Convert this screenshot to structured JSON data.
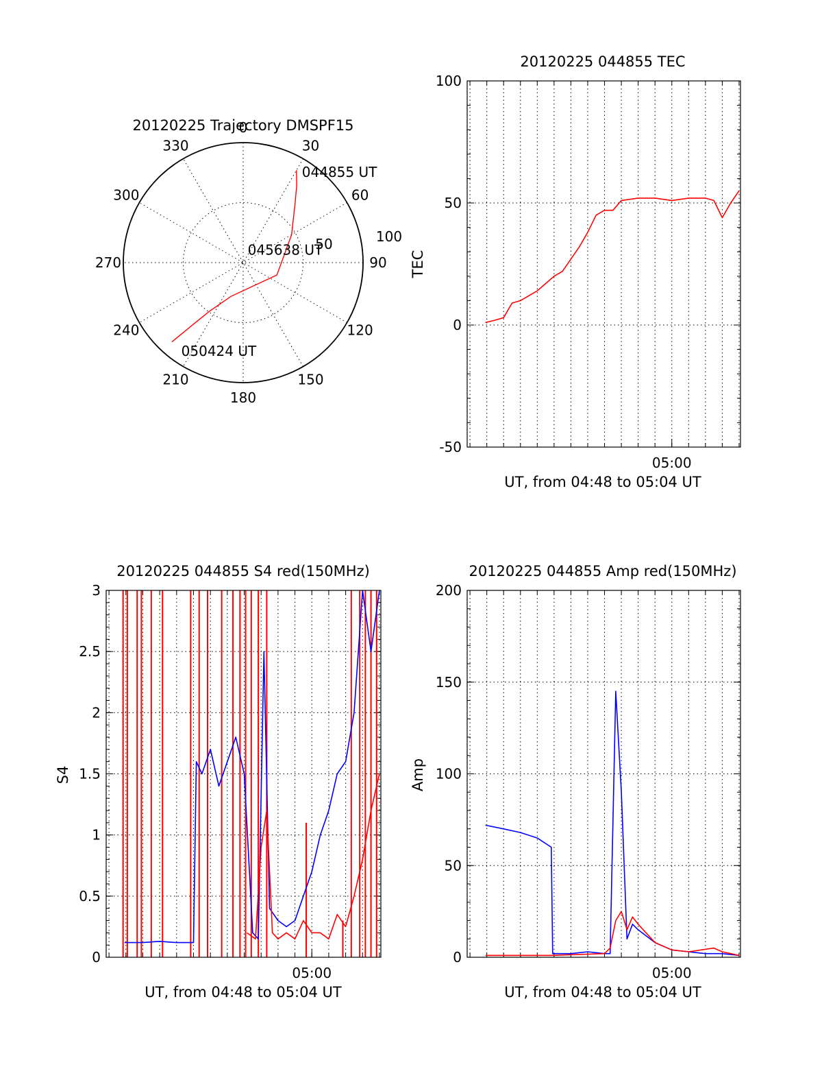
{
  "chart_data": [
    {
      "type": "polar-trajectory",
      "title": "20120225 Trajectory DMSPF15",
      "azimuth_labels": [
        "0",
        "30",
        "60",
        "90",
        "120",
        "150",
        "180",
        "210",
        "240",
        "270",
        "300",
        "330"
      ],
      "radial_labels": [
        "50",
        "100"
      ],
      "grid": true,
      "series": [
        {
          "color": "#ff0000",
          "points": [
            {
              "az": 30,
              "elev": 10
            },
            {
              "az": 35,
              "elev": 20
            },
            {
              "az": 42,
              "elev": 32
            },
            {
              "az": 60,
              "elev": 48
            },
            {
              "az": 110,
              "elev": 63
            },
            {
              "az": 200,
              "elev": 63
            },
            {
              "az": 215,
              "elev": 45
            },
            {
              "az": 220,
              "elev": 25
            },
            {
              "az": 222,
              "elev": 10
            }
          ]
        }
      ],
      "annotations": [
        {
          "text": "044855 UT",
          "az": 33,
          "elev": 9
        },
        {
          "text": "045638 UT",
          "az": 20,
          "elev": 80
        },
        {
          "text": "050424 UT",
          "az": 215,
          "elev": 9
        }
      ]
    },
    {
      "type": "line",
      "title": "20120225 044855 TEC",
      "xlabel": "UT, from 04:48 to 05:04 UT",
      "ylabel": "TEC",
      "xlim": [
        "04:47:50",
        "05:04:05"
      ],
      "ylim": [
        -50,
        100
      ],
      "yticks": [
        -50,
        0,
        50,
        100
      ],
      "xtick_labels": [
        {
          "label": "05:00",
          "t": "05:00"
        }
      ],
      "grid": true,
      "series": [
        {
          "color": "#ff0000",
          "x": [
            "04:48:55",
            "04:49:30",
            "04:50:00",
            "04:50:30",
            "04:51:00",
            "04:51:30",
            "04:52:00",
            "04:52:30",
            "04:53:00",
            "04:53:30",
            "04:54:00",
            "04:54:30",
            "04:55:00",
            "04:55:30",
            "04:56:00",
            "04:56:30",
            "04:57:00",
            "04:58:00",
            "04:59:00",
            "05:00:00",
            "05:01:00",
            "05:02:00",
            "05:02:30",
            "05:03:00",
            "05:03:30",
            "05:04:00"
          ],
          "y": [
            1,
            2,
            3,
            9,
            10,
            12,
            14,
            17,
            20,
            22,
            27,
            32,
            38,
            45,
            47,
            47,
            51,
            52,
            52,
            51,
            52,
            52,
            51,
            44,
            50,
            55
          ]
        }
      ]
    },
    {
      "type": "line",
      "title": "20120225 044855 S4 red(150MHz)",
      "xlabel": "UT, from 04:48 to 05:04 UT",
      "ylabel": "S4",
      "xlim": [
        "04:47:50",
        "05:04:05"
      ],
      "ylim": [
        0,
        3
      ],
      "yticks": [
        0,
        0.5,
        1,
        1.5,
        2,
        2.5,
        3
      ],
      "xtick_labels": [
        {
          "label": "05:00",
          "t": "05:00"
        }
      ],
      "grid": true,
      "series": [
        {
          "color": "#0000ff",
          "x": [
            "04:48:55",
            "04:50:00",
            "04:51:00",
            "04:52:00",
            "04:53:00",
            "04:53:10",
            "04:53:30",
            "04:54:00",
            "04:54:30",
            "04:55:00",
            "04:55:30",
            "04:56:00",
            "04:56:30",
            "04:56:50",
            "04:57:10",
            "04:57:30",
            "04:58:00",
            "04:58:30",
            "04:59:00",
            "04:59:30",
            "05:00:00",
            "05:00:30",
            "05:01:00",
            "05:01:30",
            "05:02:00",
            "05:02:30",
            "05:03:00",
            "05:03:30",
            "05:04:00"
          ],
          "y": [
            0.12,
            0.12,
            0.13,
            0.12,
            0.12,
            1.6,
            1.5,
            1.7,
            1.4,
            1.6,
            1.8,
            1.5,
            0.2,
            0.15,
            2.5,
            0.4,
            0.3,
            0.25,
            0.3,
            0.5,
            0.7,
            1.0,
            1.2,
            1.5,
            1.6,
            2.0,
            3.0,
            2.5,
            3.0
          ]
        },
        {
          "color": "#ff0000",
          "x": [
            "04:56:10",
            "04:56:40",
            "04:57:00",
            "04:57:20",
            "04:57:40",
            "04:58:00",
            "04:58:30",
            "04:59:00",
            "04:59:30",
            "05:00:00",
            "05:00:30",
            "05:01:00",
            "05:01:30",
            "05:02:00",
            "05:02:30",
            "05:03:00",
            "05:03:30",
            "05:04:00"
          ],
          "y": [
            0.2,
            0.15,
            0.9,
            1.2,
            0.2,
            0.15,
            0.2,
            0.15,
            0.3,
            0.2,
            0.2,
            0.15,
            0.35,
            0.25,
            0.5,
            0.8,
            1.2,
            1.5
          ]
        }
      ],
      "spikes": {
        "color": "#ff0000",
        "x": [
          "04:48:50",
          "04:49:05",
          "04:49:40",
          "04:49:55",
          "04:50:30",
          "04:51:10",
          "04:52:50",
          "04:53:20",
          "04:53:50",
          "04:54:40",
          "04:55:20",
          "04:55:45",
          "04:56:05",
          "04:56:25",
          "04:56:50",
          "04:57:20",
          "04:59:40",
          "05:01:50",
          "05:02:20",
          "05:02:50",
          "05:03:10",
          "05:03:30",
          "05:03:50"
        ],
        "y": [
          3,
          3,
          3,
          3,
          3,
          3,
          3,
          3,
          3,
          3,
          3,
          3,
          3,
          3,
          3,
          3,
          1.1,
          0.3,
          3,
          3,
          3,
          3,
          3
        ]
      }
    },
    {
      "type": "line",
      "title": "20120225 044855 Amp red(150MHz)",
      "xlabel": "UT, from 04:48 to 05:04 UT",
      "ylabel": "Amp",
      "xlim": [
        "04:47:50",
        "05:04:05"
      ],
      "ylim": [
        0,
        200
      ],
      "yticks": [
        0,
        50,
        100,
        150,
        200
      ],
      "xtick_labels": [
        {
          "label": "05:00",
          "t": "05:00"
        }
      ],
      "grid": true,
      "series": [
        {
          "color": "#0000ff",
          "x": [
            "04:48:55",
            "04:50:00",
            "04:51:00",
            "04:52:00",
            "04:52:50",
            "04:52:55",
            "04:54:00",
            "04:55:00",
            "04:56:00",
            "04:56:20",
            "04:56:40",
            "04:57:00",
            "04:57:20",
            "04:57:40",
            "04:58:00",
            "04:59:00",
            "05:00:00",
            "05:01:00",
            "05:02:00",
            "05:03:00",
            "05:04:00"
          ],
          "y": [
            72,
            70,
            68,
            65,
            60,
            2,
            2,
            3,
            2,
            2,
            145,
            90,
            10,
            18,
            15,
            8,
            4,
            3,
            2,
            2,
            1
          ]
        },
        {
          "color": "#ff0000",
          "x": [
            "04:48:55",
            "04:52:50",
            "04:56:00",
            "04:56:20",
            "04:56:40",
            "04:57:00",
            "04:57:20",
            "04:57:40",
            "04:58:00",
            "04:59:00",
            "05:00:00",
            "05:01:00",
            "05:02:30",
            "05:03:00",
            "05:04:00"
          ],
          "y": [
            1,
            1,
            2,
            5,
            20,
            25,
            15,
            22,
            18,
            8,
            4,
            3,
            5,
            3,
            1
          ]
        }
      ]
    }
  ]
}
